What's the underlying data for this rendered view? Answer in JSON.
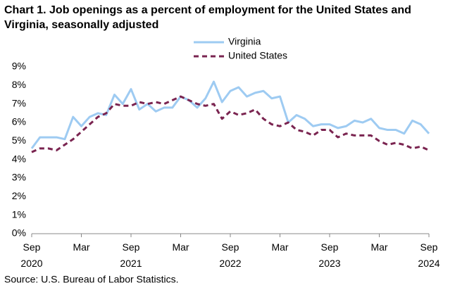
{
  "chart_data": {
    "type": "line",
    "title": "Chart 1. Job openings as a percent of employment for the United States and Virginia, seasonally adjusted",
    "source": "Source: U.S. Bureau of Labor Statistics.",
    "categories": [
      "Sep 2020",
      null,
      null,
      null,
      null,
      null,
      "Mar",
      null,
      null,
      null,
      null,
      null,
      "Sep 2021",
      null,
      null,
      null,
      null,
      null,
      "Mar",
      null,
      null,
      null,
      null,
      null,
      "Sep 2022",
      null,
      null,
      null,
      null,
      null,
      "Mar",
      null,
      null,
      null,
      null,
      null,
      "Sep 2023",
      null,
      null,
      null,
      null,
      null,
      "Mar",
      null,
      null,
      null,
      null,
      null,
      "Sep 2024"
    ],
    "series": [
      {
        "name": "Virginia",
        "color": "#9ecbf2",
        "dashed": false,
        "values": [
          4.6,
          5.2,
          5.2,
          5.2,
          5.1,
          6.3,
          5.8,
          6.3,
          6.5,
          6.4,
          7.5,
          7.0,
          7.8,
          6.7,
          7.0,
          6.6,
          6.8,
          6.8,
          7.4,
          7.2,
          6.8,
          7.3,
          8.2,
          7.1,
          7.7,
          7.9,
          7.4,
          7.6,
          7.7,
          7.3,
          7.4,
          6.0,
          6.4,
          6.2,
          5.8,
          5.9,
          5.9,
          5.7,
          5.8,
          6.1,
          6.0,
          6.2,
          5.7,
          5.6,
          5.6,
          5.4,
          6.1,
          5.9,
          5.4
        ]
      },
      {
        "name": "United States",
        "color": "#7a2450",
        "dashed": true,
        "values": [
          4.4,
          4.6,
          4.6,
          4.5,
          4.8,
          5.1,
          5.5,
          5.9,
          6.3,
          6.5,
          7.0,
          6.9,
          6.9,
          7.1,
          7.0,
          7.1,
          7.0,
          7.2,
          7.4,
          7.2,
          7.0,
          6.9,
          7.0,
          6.2,
          6.6,
          6.4,
          6.5,
          6.7,
          6.2,
          5.9,
          5.8,
          6.0,
          5.6,
          5.5,
          5.3,
          5.6,
          5.6,
          5.2,
          5.4,
          5.3,
          5.3,
          5.3,
          5.0,
          4.8,
          4.9,
          4.8,
          4.6,
          4.7,
          4.5
        ]
      }
    ],
    "ylim": [
      0,
      9
    ],
    "yticks": [
      {
        "value": 0,
        "label": "0%"
      },
      {
        "value": 1,
        "label": "1%"
      },
      {
        "value": 2,
        "label": "2%"
      },
      {
        "value": 3,
        "label": "3%"
      },
      {
        "value": 4,
        "label": "4%"
      },
      {
        "value": 5,
        "label": "5%"
      },
      {
        "value": 6,
        "label": "6%"
      },
      {
        "value": 7,
        "label": "7%"
      },
      {
        "value": 8,
        "label": "8%"
      },
      {
        "value": 9,
        "label": "9%"
      }
    ],
    "grid": false,
    "legend": "top"
  }
}
